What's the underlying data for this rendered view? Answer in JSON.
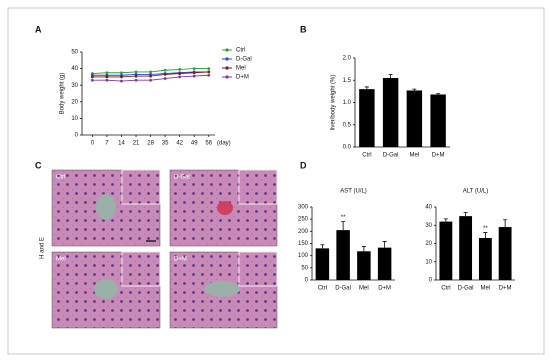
{
  "panel_labels": [
    "A",
    "B",
    "C",
    "D"
  ],
  "histology": {
    "y_label": "H and E",
    "labels": [
      "Ctrl",
      "D-Gal",
      "Mel",
      "D+M"
    ]
  },
  "chart_data": [
    {
      "type": "line",
      "y_label": "Body weight (g)",
      "x_label": "(day)",
      "x": [
        0,
        7,
        14,
        21,
        28,
        35,
        42,
        49,
        56
      ],
      "xlim": [
        -5,
        59
      ],
      "xticks": [
        0,
        7,
        14,
        21,
        28,
        35,
        42,
        49,
        56
      ],
      "ylim": [
        0,
        50
      ],
      "yticks": [
        0,
        10,
        20,
        30,
        40,
        50
      ],
      "series": [
        {
          "name": "Ctrl",
          "color": "#2e9e3a",
          "values": [
            37,
            37.5,
            37.5,
            38,
            38,
            39,
            39.5,
            40,
            40
          ]
        },
        {
          "name": "D-Gal",
          "color": "#3040d0",
          "values": [
            36,
            36,
            36,
            36.5,
            36.5,
            37,
            37.5,
            38,
            38
          ]
        },
        {
          "name": "Mel",
          "color": "#7a1a1a",
          "values": [
            35,
            35,
            35,
            35.5,
            35.5,
            36.5,
            37,
            37.5,
            38
          ]
        },
        {
          "name": "D+M",
          "color": "#7a3a9a",
          "values": [
            33,
            33,
            32.5,
            33,
            33,
            34,
            35,
            35.5,
            36
          ]
        }
      ]
    },
    {
      "type": "bar",
      "y_label": "liver/body weight (%)",
      "categories": [
        "Ctrl",
        "D-Gal",
        "Mel",
        "D+M"
      ],
      "values": [
        1.3,
        1.55,
        1.27,
        1.18
      ],
      "errors": [
        0.05,
        0.08,
        0.03,
        0.02
      ],
      "color": "#000000",
      "ylim": [
        0,
        2
      ],
      "yticks": [
        {
          "value": 0,
          "label": "0.0"
        },
        0.5,
        {
          "value": 1,
          "label": "1.0"
        },
        1.5,
        {
          "value": 2,
          "label": "2.0"
        }
      ]
    },
    {
      "type": "bar",
      "title": "AST (U/L)",
      "categories": [
        "Ctrl",
        "D-Gal",
        "Mel",
        "D+M"
      ],
      "values": [
        130,
        205,
        118,
        133
      ],
      "errors": [
        15,
        35,
        20,
        25
      ],
      "color": "#000000",
      "significance": [
        null,
        "**",
        null,
        null
      ],
      "ylim": [
        0,
        300
      ],
      "yticks": [
        0,
        50,
        100,
        150,
        200,
        250,
        300
      ]
    },
    {
      "type": "bar",
      "title": "ALT (U/L)",
      "categories": [
        "Ctrl",
        "D-Gal",
        "Mel",
        "D+M"
      ],
      "values": [
        32,
        35,
        23,
        29
      ],
      "errors": [
        1.5,
        2,
        3,
        4
      ],
      "color": "#000000",
      "significance": [
        null,
        null,
        "**",
        null
      ],
      "ylim": [
        0,
        40
      ],
      "yticks": [
        0,
        10,
        20,
        30,
        40
      ]
    }
  ]
}
